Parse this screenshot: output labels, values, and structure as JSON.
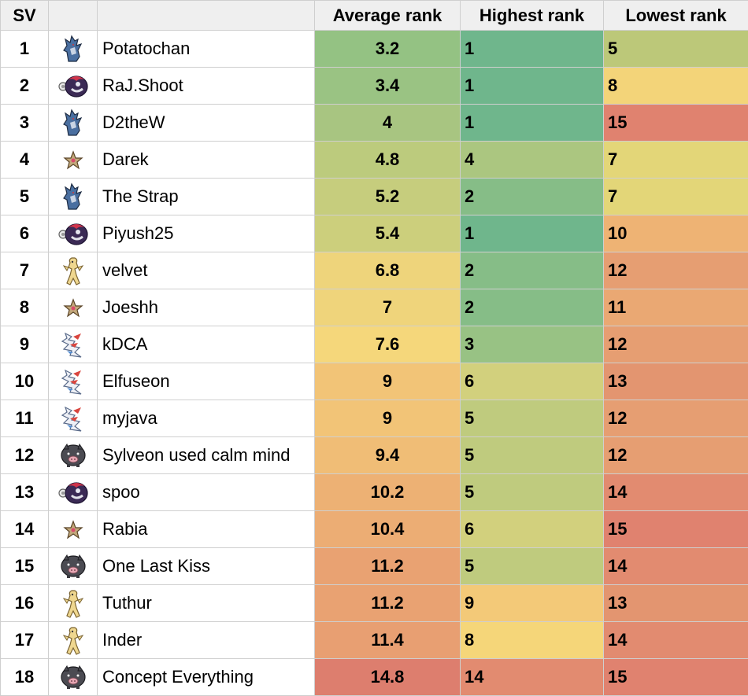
{
  "headers": {
    "sv": "SV",
    "icon": "",
    "name": "",
    "avg": "Average rank",
    "high": "Highest rank",
    "low": "Lowest rank"
  },
  "rows": [
    {
      "sv": "1",
      "icon": "garchomp-icon",
      "name": "Potatochan",
      "avg": "3.2",
      "high": "1",
      "low": "5",
      "avg_color": "#94c283",
      "high_color": "#6fb68c",
      "low_color": "#bcc879"
    },
    {
      "sv": "2",
      "icon": "iron-moth-icon",
      "name": "RaJ.Shoot",
      "avg": "3.4",
      "high": "1",
      "low": "8",
      "avg_color": "#9ac383",
      "high_color": "#6fb68c",
      "low_color": "#f3d479"
    },
    {
      "sv": "3",
      "icon": "garchomp-icon",
      "name": "D2theW",
      "avg": "4",
      "high": "1",
      "low": "15",
      "avg_color": "#a8c581",
      "high_color": "#6fb68c",
      "low_color": "#e0826f"
    },
    {
      "sv": "4",
      "icon": "starmie-icon",
      "name": "Darek",
      "avg": "4.8",
      "high": "4",
      "low": "7",
      "avg_color": "#bccb7d",
      "high_color": "#abc680",
      "low_color": "#e3d678"
    },
    {
      "sv": "5",
      "icon": "garchomp-icon",
      "name": "The Strap",
      "avg": "5.2",
      "high": "2",
      "low": "7",
      "avg_color": "#c6cd7d",
      "high_color": "#86bd87",
      "low_color": "#e3d678"
    },
    {
      "sv": "6",
      "icon": "iron-moth-icon",
      "name": "Piyush25",
      "avg": "5.4",
      "high": "1",
      "low": "10",
      "avg_color": "#cccf7c",
      "high_color": "#6fb68c",
      "low_color": "#eeb374"
    },
    {
      "sv": "7",
      "icon": "dudunsparce-icon",
      "name": "velvet",
      "avg": "6.8",
      "high": "2",
      "low": "12",
      "avg_color": "#eed47b",
      "high_color": "#86bd87",
      "low_color": "#e69e72"
    },
    {
      "sv": "8",
      "icon": "starmie-icon",
      "name": "Joeshh",
      "avg": "7",
      "high": "2",
      "low": "11",
      "avg_color": "#efd47b",
      "high_color": "#86bd87",
      "low_color": "#eaa873"
    },
    {
      "sv": "9",
      "icon": "iron-valiant-icon",
      "name": "kDCA",
      "avg": "7.6",
      "high": "3",
      "low": "12",
      "avg_color": "#f5d77b",
      "high_color": "#98c284",
      "low_color": "#e69e72"
    },
    {
      "sv": "10",
      "icon": "iron-valiant-icon",
      "name": "Elfuseon",
      "avg": "9",
      "high": "6",
      "low": "13",
      "avg_color": "#f2c477",
      "high_color": "#d2d07d",
      "low_color": "#e39570"
    },
    {
      "sv": "11",
      "icon": "iron-valiant-icon",
      "name": "myjava",
      "avg": "9",
      "high": "5",
      "low": "12",
      "avg_color": "#f2c477",
      "high_color": "#bfcb7e",
      "low_color": "#e69e72"
    },
    {
      "sv": "12",
      "icon": "lechonk-icon",
      "name": "Sylveon used calm mind",
      "avg": "9.4",
      "high": "5",
      "low": "12",
      "avg_color": "#f0bd76",
      "high_color": "#bfcb7e",
      "low_color": "#e69e72"
    },
    {
      "sv": "13",
      "icon": "iron-moth-icon",
      "name": "spoo",
      "avg": "10.2",
      "high": "5",
      "low": "14",
      "avg_color": "#edb174",
      "high_color": "#bfcb7e",
      "low_color": "#e28b70"
    },
    {
      "sv": "14",
      "icon": "starmie-icon",
      "name": "Rabia",
      "avg": "10.4",
      "high": "6",
      "low": "15",
      "avg_color": "#ecad74",
      "high_color": "#d2d07d",
      "low_color": "#e0826f"
    },
    {
      "sv": "15",
      "icon": "lechonk-icon",
      "name": "One Last Kiss",
      "avg": "11.2",
      "high": "5",
      "low": "14",
      "avg_color": "#e9a272",
      "high_color": "#bfcb7e",
      "low_color": "#e28b70"
    },
    {
      "sv": "16",
      "icon": "dudunsparce-icon",
      "name": "Tuthur",
      "avg": "11.2",
      "high": "9",
      "low": "13",
      "avg_color": "#e9a272",
      "high_color": "#f3c978",
      "low_color": "#e39570"
    },
    {
      "sv": "17",
      "icon": "dudunsparce-icon",
      "name": "Inder",
      "avg": "11.4",
      "high": "8",
      "low": "14",
      "avg_color": "#e89f72",
      "high_color": "#f5d679",
      "low_color": "#e28b70"
    },
    {
      "sv": "18",
      "icon": "lechonk-icon",
      "name": "Concept Everything",
      "avg": "14.8",
      "high": "14",
      "low": "15",
      "avg_color": "#dd7e6e",
      "high_color": "#e28b70",
      "low_color": "#e0826f"
    }
  ]
}
